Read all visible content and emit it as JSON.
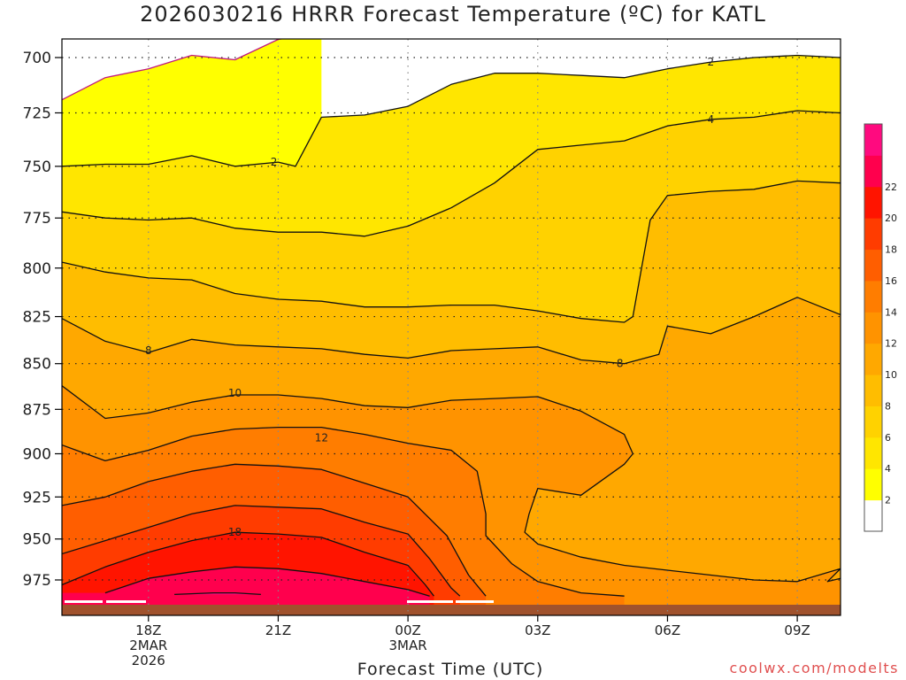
{
  "title": "2026030216 HRRR Forecast Temperature (ºC) for KATL",
  "xlabel": "Forecast Time (UTC)",
  "credit": "coolwx.com/modelts",
  "chart_data": {
    "type": "contour",
    "title": "2026030216 HRRR Forecast Temperature (ºC) for KATL",
    "xlabel": "Forecast Time (UTC)",
    "ylabel": "",
    "x_ticks": [
      {
        "hour": 18,
        "label": "18Z",
        "sub1": "2MAR",
        "sub2": "2026"
      },
      {
        "hour": 21,
        "label": "21Z",
        "sub1": "",
        "sub2": ""
      },
      {
        "hour": 24,
        "label": "00Z",
        "sub1": "3MAR",
        "sub2": ""
      },
      {
        "hour": 27,
        "label": "03Z",
        "sub1": "",
        "sub2": ""
      },
      {
        "hour": 30,
        "label": "06Z",
        "sub1": "",
        "sub2": ""
      },
      {
        "hour": 33,
        "label": "09Z",
        "sub1": "",
        "sub2": ""
      }
    ],
    "y_ticks": [
      700,
      725,
      750,
      775,
      800,
      825,
      850,
      875,
      900,
      925,
      950,
      975
    ],
    "xlim_hours": [
      16,
      34
    ],
    "ylim_hpa": [
      988,
      690
    ],
    "y_axis": "pressure (hPa), log scale, top=low pressure",
    "grid": "dotted",
    "colorbar": {
      "levels": [
        0,
        2,
        4,
        6,
        8,
        10,
        12,
        14,
        16,
        18,
        20,
        22,
        24
      ],
      "labels": [
        "2",
        "4",
        "6",
        "8",
        "10",
        "12",
        "14",
        "16",
        "18",
        "20",
        "22"
      ],
      "colors": [
        "#ffffff",
        "#ffff00",
        "#ffe600",
        "#ffd200",
        "#ffbd00",
        "#ffa800",
        "#ff9300",
        "#ff7d00",
        "#ff5e00",
        "#ff3c00",
        "#ff1400",
        "#ff004d",
        "#ff0a7f"
      ]
    },
    "contour_labels": [
      {
        "value": "2",
        "hour": 20.9,
        "hpa": 748
      },
      {
        "value": "2",
        "hour": 31.0,
        "hpa": 702
      },
      {
        "value": "4",
        "hour": 31.0,
        "hpa": 728
      },
      {
        "value": "8",
        "hour": 18.0,
        "hpa": 843
      },
      {
        "value": "8",
        "hour": 28.9,
        "hpa": 850
      },
      {
        "value": "10",
        "hour": 20.0,
        "hpa": 866
      },
      {
        "value": "12",
        "hour": 22.0,
        "hpa": 891
      },
      {
        "value": "18",
        "hour": 20.0,
        "hpa": 946
      }
    ],
    "series": [
      {
        "level": 0,
        "points": [
          [
            16,
            719
          ],
          [
            17,
            709
          ],
          [
            18,
            705
          ],
          [
            19,
            699
          ],
          [
            20,
            701
          ],
          [
            21,
            692
          ],
          [
            22,
            689
          ]
        ]
      },
      {
        "level": 2,
        "points": [
          [
            16,
            750
          ],
          [
            17,
            749
          ],
          [
            18,
            749
          ],
          [
            19,
            745
          ],
          [
            20,
            750
          ],
          [
            21,
            748
          ],
          [
            21.4,
            750
          ],
          [
            22.0,
            727
          ],
          [
            23,
            726
          ],
          [
            24,
            722
          ],
          [
            25,
            712
          ],
          [
            26,
            707
          ],
          [
            27,
            707
          ],
          [
            28,
            708
          ],
          [
            29,
            709
          ],
          [
            30,
            705
          ],
          [
            31,
            702
          ],
          [
            32,
            700
          ],
          [
            33,
            699
          ],
          [
            34,
            700
          ]
        ]
      },
      {
        "level": 4,
        "points": [
          [
            16,
            772
          ],
          [
            17,
            775
          ],
          [
            18,
            776
          ],
          [
            19,
            775
          ],
          [
            20,
            780
          ],
          [
            21,
            782
          ],
          [
            22,
            782
          ],
          [
            23,
            784
          ],
          [
            24,
            779
          ],
          [
            25,
            770
          ],
          [
            26,
            758
          ],
          [
            27,
            742
          ],
          [
            28,
            740
          ],
          [
            29,
            738
          ],
          [
            30,
            731
          ],
          [
            31,
            728
          ],
          [
            32,
            727
          ],
          [
            33,
            724
          ],
          [
            34,
            725
          ]
        ]
      },
      {
        "level": 6,
        "points": [
          [
            16,
            797
          ],
          [
            17,
            802
          ],
          [
            18,
            805
          ],
          [
            19,
            806
          ],
          [
            20,
            813
          ],
          [
            21,
            816
          ],
          [
            22,
            817
          ],
          [
            23,
            820
          ],
          [
            24,
            820
          ],
          [
            25,
            819
          ],
          [
            26,
            819
          ],
          [
            27,
            822
          ],
          [
            28,
            826
          ],
          [
            29,
            828
          ],
          [
            29.2,
            825
          ],
          [
            29.4,
            800
          ],
          [
            29.6,
            776
          ],
          [
            30,
            764
          ],
          [
            31,
            762
          ],
          [
            32,
            761
          ],
          [
            33,
            757
          ],
          [
            34,
            758
          ]
        ]
      },
      {
        "level": 8,
        "points": [
          [
            16,
            826
          ],
          [
            17,
            838
          ],
          [
            18,
            844
          ],
          [
            19,
            837
          ],
          [
            20,
            840
          ],
          [
            21,
            841
          ],
          [
            22,
            842
          ],
          [
            23,
            845
          ],
          [
            24,
            847
          ],
          [
            25,
            843
          ],
          [
            26,
            842
          ],
          [
            27,
            841
          ],
          [
            28,
            848
          ],
          [
            29,
            850
          ],
          [
            29.8,
            845
          ],
          [
            30,
            830
          ],
          [
            31,
            834
          ],
          [
            32,
            825
          ],
          [
            33,
            815
          ],
          [
            34,
            824
          ]
        ]
      },
      {
        "level": 10,
        "points": [
          [
            16,
            862
          ],
          [
            17,
            880
          ],
          [
            18,
            877
          ],
          [
            19,
            871
          ],
          [
            20,
            867
          ],
          [
            21,
            867
          ],
          [
            22,
            869
          ],
          [
            23,
            873
          ],
          [
            24,
            874
          ],
          [
            25,
            870
          ],
          [
            26,
            869
          ],
          [
            27,
            868
          ],
          [
            28,
            876
          ],
          [
            29,
            889
          ],
          [
            29.2,
            900
          ],
          [
            29,
            906
          ],
          [
            28,
            924
          ],
          [
            27,
            920
          ],
          [
            26.8,
            935
          ],
          [
            26.7,
            946
          ],
          [
            27,
            953
          ],
          [
            28,
            961
          ],
          [
            29,
            966
          ],
          [
            30,
            969
          ],
          [
            31,
            972
          ],
          [
            32,
            975
          ],
          [
            33,
            976
          ],
          [
            34,
            968
          ],
          [
            33.7,
            976
          ],
          [
            34,
            974
          ]
        ]
      },
      {
        "level": 12,
        "points": [
          [
            16,
            895
          ],
          [
            17,
            904
          ],
          [
            18,
            898
          ],
          [
            19,
            890
          ],
          [
            20,
            886
          ],
          [
            21,
            885
          ],
          [
            22,
            885
          ],
          [
            23,
            889
          ],
          [
            24,
            894
          ],
          [
            25,
            898
          ],
          [
            25.6,
            910
          ],
          [
            25.8,
            935
          ],
          [
            25.8,
            948
          ],
          [
            26.4,
            965
          ],
          [
            27,
            976
          ],
          [
            28,
            983
          ],
          [
            29,
            985
          ]
        ]
      },
      {
        "level": 14,
        "points": [
          [
            16,
            930
          ],
          [
            17,
            925
          ],
          [
            18,
            916
          ],
          [
            19,
            910
          ],
          [
            20,
            906
          ],
          [
            21,
            907
          ],
          [
            22,
            909
          ],
          [
            23,
            917
          ],
          [
            24,
            925
          ],
          [
            24.9,
            948
          ],
          [
            25.4,
            972
          ],
          [
            25.8,
            985
          ]
        ]
      },
      {
        "level": 16,
        "points": [
          [
            16,
            959
          ],
          [
            17,
            951
          ],
          [
            18,
            943
          ],
          [
            19,
            935
          ],
          [
            20,
            930
          ],
          [
            21,
            931
          ],
          [
            22,
            932
          ],
          [
            23,
            940
          ],
          [
            24,
            947
          ],
          [
            24.5,
            962
          ],
          [
            25,
            980
          ],
          [
            25.2,
            985
          ]
        ]
      },
      {
        "level": 18,
        "points": [
          [
            16,
            978
          ],
          [
            17,
            967
          ],
          [
            18,
            958
          ],
          [
            19,
            951
          ],
          [
            20,
            946
          ],
          [
            21,
            947
          ],
          [
            22,
            949
          ],
          [
            23,
            958
          ],
          [
            24,
            966
          ],
          [
            24.4,
            978
          ],
          [
            24.6,
            985
          ]
        ]
      },
      {
        "level": 20,
        "points": [
          [
            17,
            983
          ],
          [
            18,
            974
          ],
          [
            19,
            970
          ],
          [
            20,
            967
          ],
          [
            21,
            968
          ],
          [
            22,
            971
          ],
          [
            23,
            976
          ],
          [
            24,
            981
          ],
          [
            24.5,
            985
          ]
        ]
      },
      {
        "level": 22,
        "points": [
          [
            18.6,
            984
          ],
          [
            19.5,
            983
          ],
          [
            20,
            983
          ],
          [
            20.6,
            984
          ]
        ]
      }
    ]
  }
}
